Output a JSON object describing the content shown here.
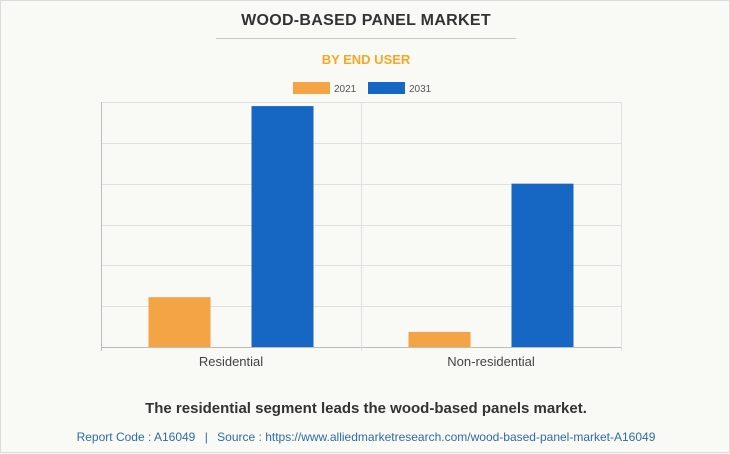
{
  "header": {
    "title": "WOOD-BASED PANEL MARKET",
    "subtitle": "BY END USER"
  },
  "colors": {
    "subtitle": "#f7a823",
    "series_2021": "#f4a444",
    "series_2031": "#1567c3",
    "grid": "#e0e0e0",
    "axis": "#bdbdbd",
    "tick_text": "#444444"
  },
  "chart_data": {
    "type": "bar",
    "categories": [
      "Residential",
      "Non-residential"
    ],
    "series": [
      {
        "name": "2021",
        "values": [
          12.2,
          3.7
        ]
      },
      {
        "name": "2031",
        "values": [
          59.0,
          40.0
        ]
      }
    ],
    "ylim": [
      0,
      60
    ],
    "y_gridlines": 6,
    "grid": true,
    "legend": "top-center",
    "xlabel": "",
    "ylabel": ""
  },
  "caption": "The residential segment leads the wood-based panels market.",
  "footer": {
    "report_code": "Report Code : A16049",
    "separator": "|",
    "source": "Source : https://www.alliedmarketresearch.com/wood-based-panel-market-A16049"
  }
}
